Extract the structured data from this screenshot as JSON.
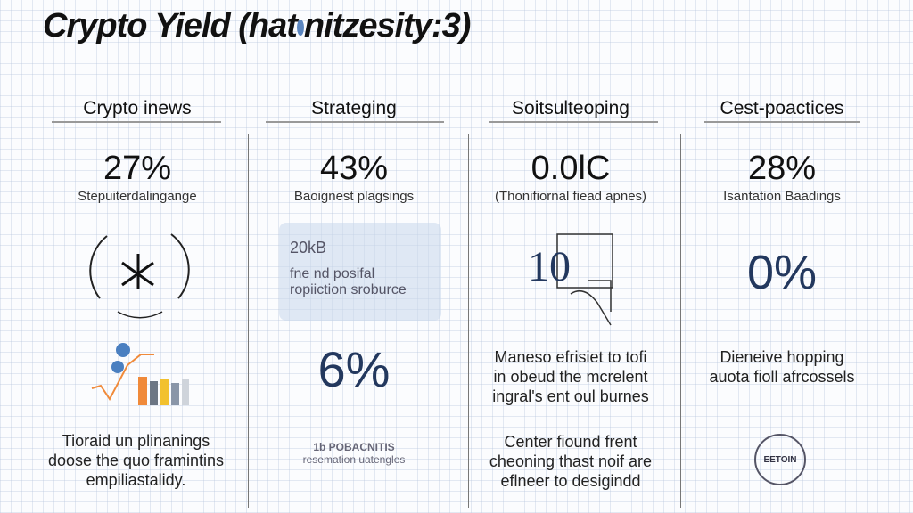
{
  "title": {
    "main": "Crypto Yield (hat",
    "rest": "nitzesity:3)"
  },
  "columns": [
    {
      "header": "Crypto inews",
      "value": "27%",
      "subtitle": "Stepuiterdalingange",
      "text": [
        "Tioraid un plinanings",
        "doose the quo framintins",
        "empiliastalidy."
      ]
    },
    {
      "header": "Strateging",
      "value": "43%",
      "subtitle": "Baoignest plagsings",
      "card": {
        "value": "20kB",
        "lines": [
          "fne nd posifal",
          "ropiiction sroburce"
        ]
      },
      "big": "6%",
      "footer": [
        "1b POBACNITIS",
        "resemation uatengles"
      ]
    },
    {
      "header": "Soitsulteoping",
      "value": "0.0lC",
      "subtitle": "(Thonifiornal fiead apnes)",
      "figure": "10",
      "text": [
        "Maneso efrisiet to tofi",
        "in obeud the mcrelent",
        "ingral's ent oul burnes"
      ],
      "text2": [
        "Center fiound frent",
        "cheoning thast noif are",
        "eflneer to desigindd"
      ]
    },
    {
      "header": "Cest-poactices",
      "value": "28%",
      "subtitle": "Isantation Baadings",
      "big": "0%",
      "text": [
        "Dieneive hopping",
        "auota fioll afrcossels"
      ],
      "badge": "EETOIN"
    }
  ],
  "colors": {
    "navy": "#23385e",
    "orange": "#f08a3a",
    "gold": "#f2c12e",
    "gray": "#8a96a8"
  }
}
